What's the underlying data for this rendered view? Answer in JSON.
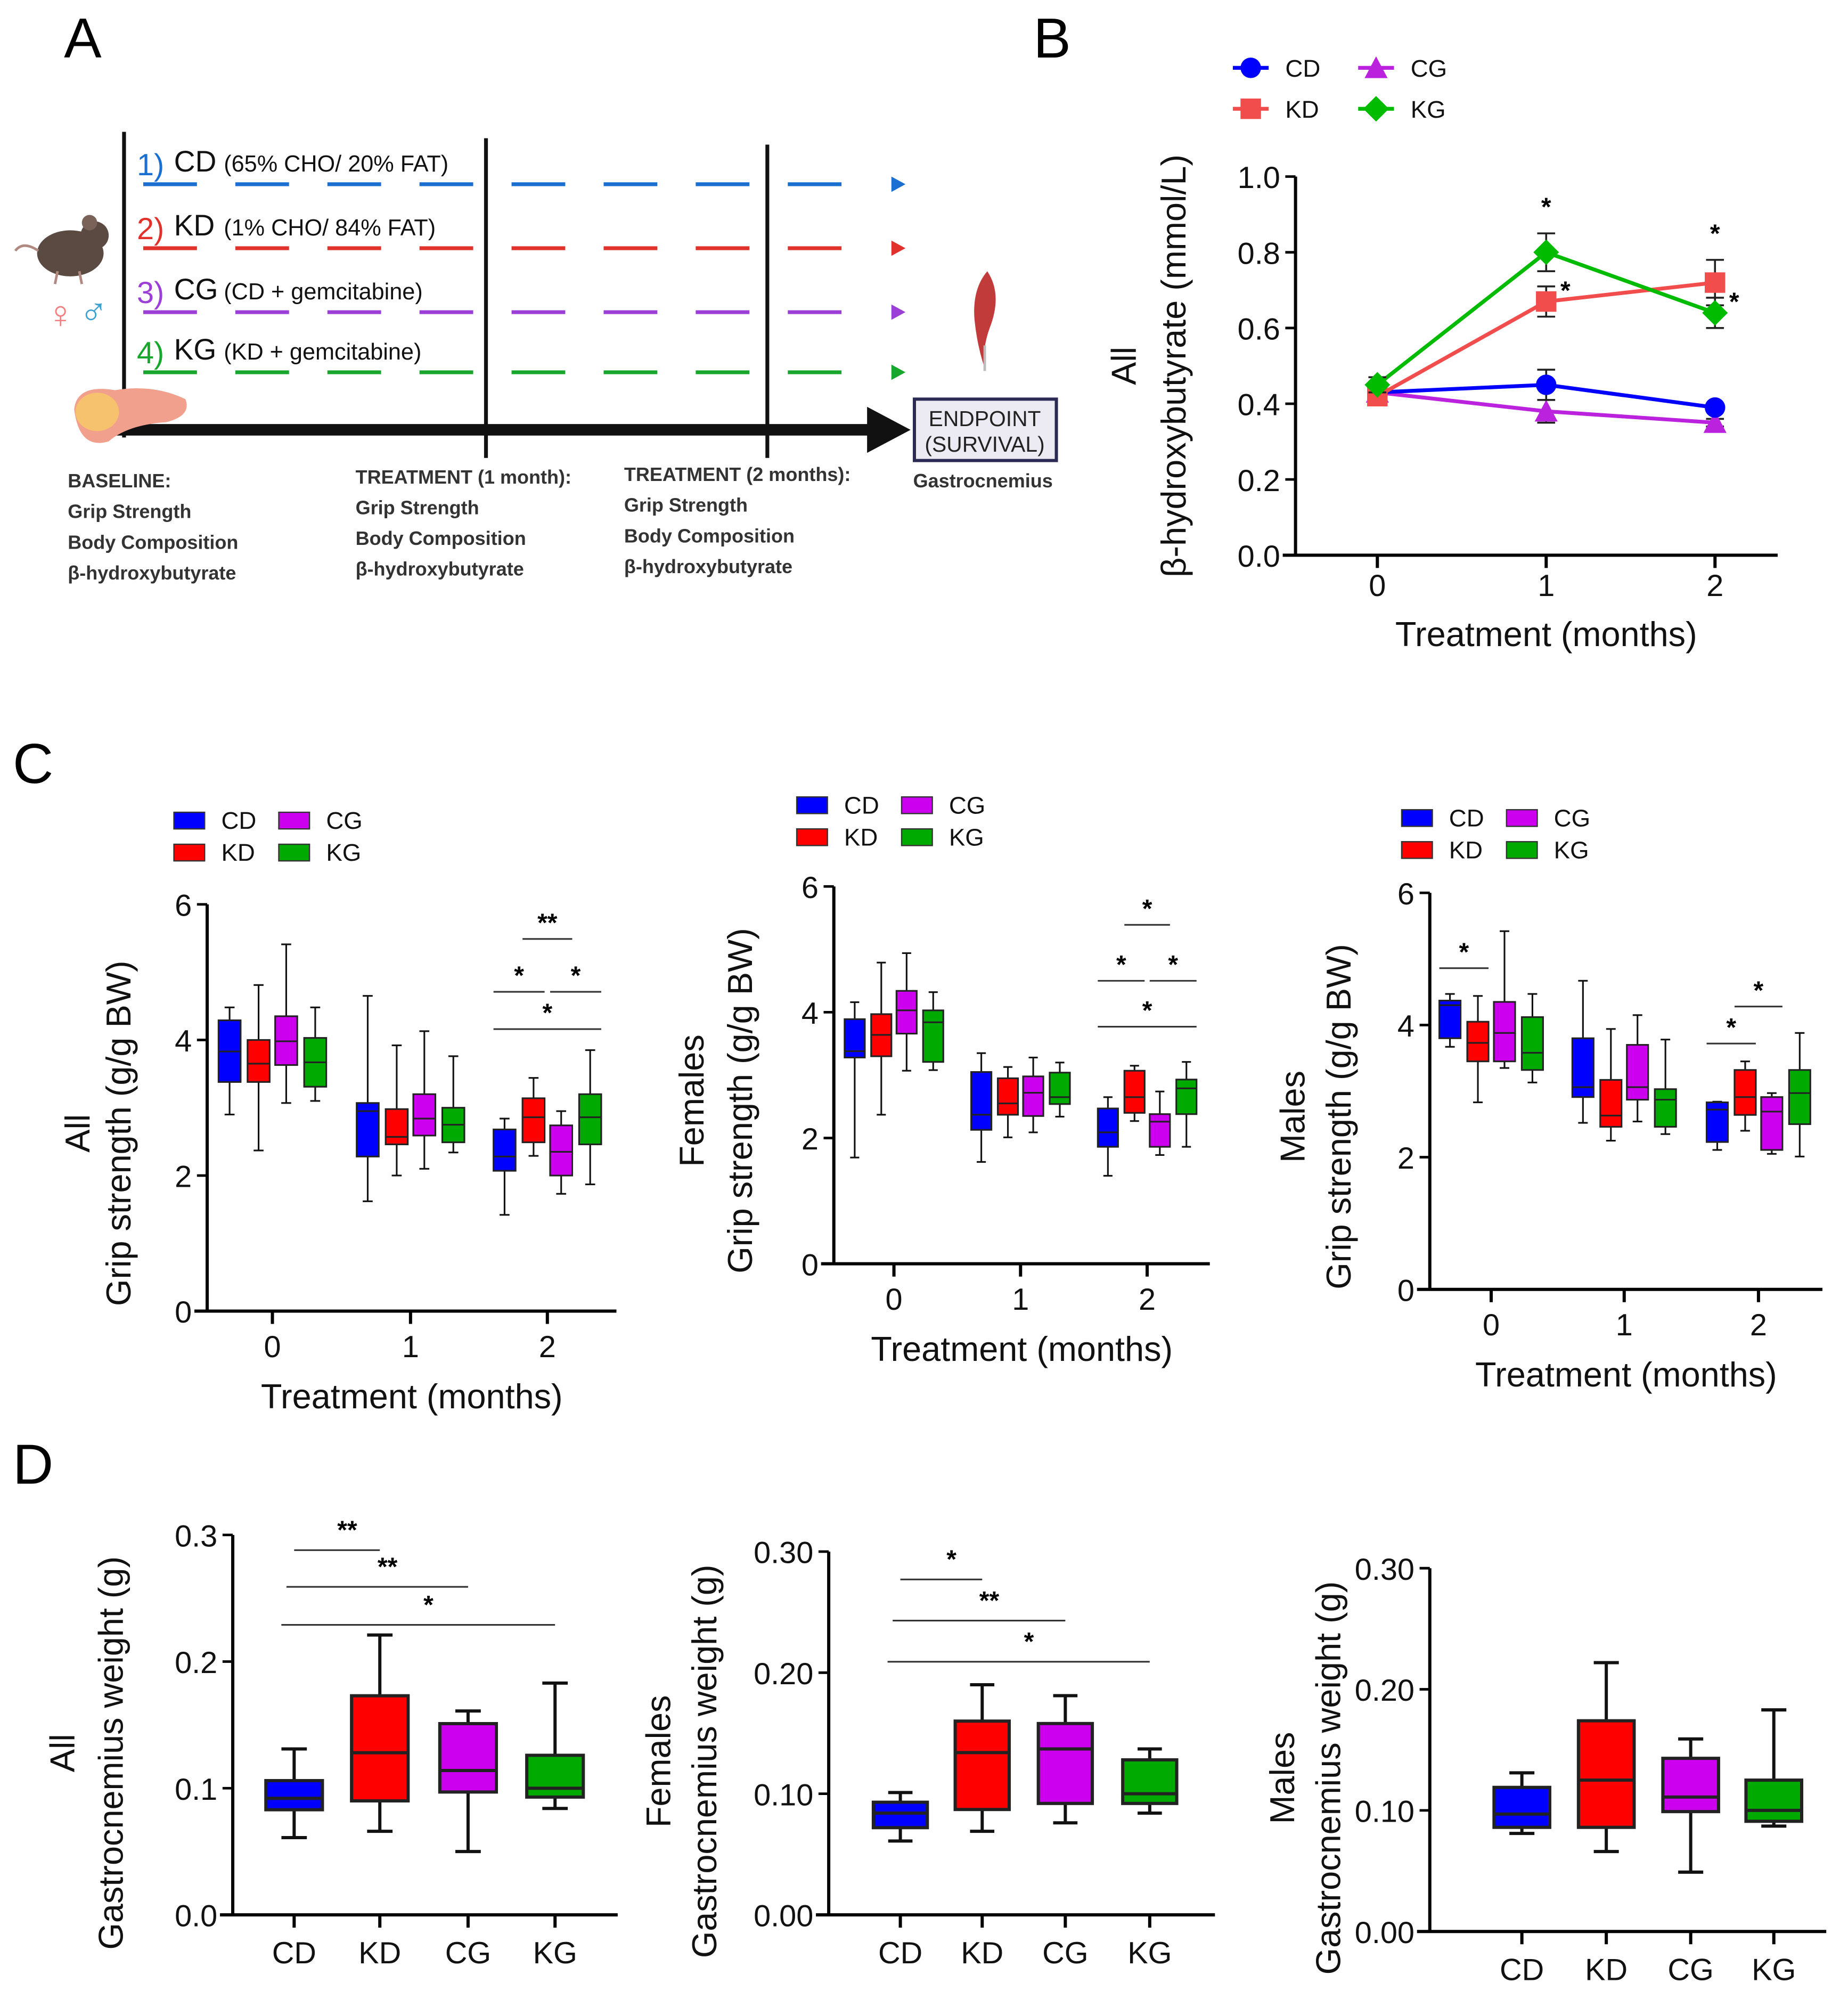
{
  "panel_labels": {
    "a": "A",
    "b": "B",
    "c": "C",
    "d": "D"
  },
  "diagram": {
    "groups": [
      {
        "num": "1)",
        "name": "CD",
        "desc": "(65% CHO/ 20% FAT)",
        "color": "#1a6fd0"
      },
      {
        "num": "2)",
        "name": "KD",
        "desc": "(1% CHO/ 84% FAT)",
        "color": "#e0322b"
      },
      {
        "num": "3)",
        "name": "CG",
        "desc": "(CD + gemcitabine)",
        "color": "#9b3fd6"
      },
      {
        "num": "4)",
        "name": "KG",
        "desc": "(KD + gemcitabine)",
        "color": "#19a62c"
      }
    ],
    "sex_symbols": {
      "female": "♀",
      "male": "♂"
    },
    "timepoints": [
      {
        "title": "BASELINE:",
        "items": [
          "Grip Strength",
          "Body Composition",
          "β-hydroxybutyrate"
        ]
      },
      {
        "title": "TREATMENT (1 month):",
        "items": [
          "Grip Strength",
          "Body Composition",
          "β-hydroxybutyrate"
        ]
      },
      {
        "title": "TREATMENT (2 months):",
        "items": [
          "Grip Strength",
          "Body Composition",
          "β-hydroxybutyrate"
        ]
      }
    ],
    "endpoint": {
      "line1": "ENDPOINT",
      "line2": "(SURVIVAL)",
      "tissue": "Gastrocnemius"
    }
  },
  "chart_data": [
    {
      "type": "line",
      "panel": "B",
      "ylabel_group": "All",
      "ylabel": "β-hydroxybutyrate (mmol/L)",
      "xlabel": "Treatment (months)",
      "x": [
        "0",
        "1",
        "2"
      ],
      "ylim": [
        0,
        1.0
      ],
      "yticks": [
        "0.0",
        "0.2",
        "0.4",
        "0.6",
        "0.8",
        "1.0"
      ],
      "legend": "top",
      "series": [
        {
          "name": "CD",
          "color": "#0000ff",
          "marker": "circle",
          "values": [
            0.43,
            0.45,
            0.39
          ],
          "sem": [
            0.02,
            0.04,
            0.01
          ]
        },
        {
          "name": "KD",
          "color": "#f24d4d",
          "marker": "square",
          "values": [
            0.42,
            0.67,
            0.72
          ],
          "sem": [
            0.02,
            0.04,
            0.06
          ]
        },
        {
          "name": "CG",
          "color": "#bb22dd",
          "marker": "triangle",
          "values": [
            0.43,
            0.38,
            0.35
          ],
          "sem": [
            0.02,
            0.03,
            0.01
          ]
        },
        {
          "name": "KG",
          "color": "#00bb00",
          "marker": "diamond",
          "values": [
            0.45,
            0.8,
            0.64
          ],
          "sem": [
            0.02,
            0.05,
            0.04
          ]
        }
      ],
      "annotations": [
        {
          "series": "KG",
          "x": "1",
          "label": "*",
          "position": "above"
        },
        {
          "series": "KD",
          "x": "1",
          "label": "*",
          "position": "right"
        },
        {
          "series": "KD",
          "x": "2",
          "label": "*",
          "position": "above"
        },
        {
          "series": "KG",
          "x": "2",
          "label": "*",
          "position": "right"
        }
      ]
    },
    {
      "type": "box",
      "panel": "C",
      "ylabel_group": "All",
      "ylabel": "Grip strength (g/g BW)",
      "xlabel": "Treatment (months)",
      "categories": [
        "0",
        "1",
        "2"
      ],
      "ylim": [
        0,
        6
      ],
      "yticks": [
        "0",
        "2",
        "4",
        "6"
      ],
      "legend": "top-left",
      "series": [
        {
          "name": "CD",
          "color": "#0000ff",
          "boxes": [
            [
              2.9,
              3.38,
              3.83,
              4.29,
              4.48
            ],
            [
              1.62,
              2.28,
              2.95,
              3.07,
              4.65
            ],
            [
              1.42,
              2.07,
              2.28,
              2.68,
              2.84
            ]
          ]
        },
        {
          "name": "KD",
          "color": "#ff0000",
          "boxes": [
            [
              2.37,
              3.38,
              3.65,
              4.0,
              4.81
            ],
            [
              2.0,
              2.46,
              2.57,
              2.98,
              3.92
            ],
            [
              2.29,
              2.49,
              2.86,
              3.14,
              3.44
            ]
          ]
        },
        {
          "name": "CG",
          "color": "#cc00ee",
          "boxes": [
            [
              3.07,
              3.63,
              3.98,
              4.35,
              5.41
            ],
            [
              2.1,
              2.59,
              2.84,
              3.2,
              4.13
            ],
            [
              1.73,
              2.0,
              2.35,
              2.74,
              2.95
            ]
          ]
        },
        {
          "name": "KG",
          "color": "#00aa00",
          "boxes": [
            [
              3.1,
              3.31,
              3.67,
              4.03,
              4.48
            ],
            [
              2.34,
              2.49,
              2.75,
              3.0,
              3.76
            ],
            [
              1.87,
              2.46,
              2.86,
              3.2,
              3.85
            ]
          ]
        }
      ],
      "annotations": [
        {
          "category": "2",
          "from": "KD",
          "to": "CG",
          "y": 5.49,
          "label": "**"
        },
        {
          "category": "2",
          "from": "CD",
          "to": "KD",
          "y": 4.71,
          "label": "*"
        },
        {
          "category": "2",
          "from": "CG",
          "to": "KG",
          "y": 4.71,
          "label": "*"
        },
        {
          "category": "2",
          "from": "CD",
          "to": "KG",
          "y": 4.16,
          "label": "*"
        }
      ]
    },
    {
      "type": "box",
      "panel": "C",
      "ylabel_group": "Females",
      "ylabel": "Grip strength (g/g BW)",
      "xlabel": "Treatment (months)",
      "categories": [
        "0",
        "1",
        "2"
      ],
      "ylim": [
        0,
        6
      ],
      "yticks": [
        "0",
        "2",
        "4",
        "6"
      ],
      "legend": "top-left",
      "series": [
        {
          "name": "CD",
          "color": "#0000ff",
          "boxes": [
            [
              1.69,
              3.28,
              3.38,
              3.89,
              4.16
            ],
            [
              1.62,
              2.13,
              2.37,
              3.05,
              3.35
            ],
            [
              1.4,
              1.86,
              2.09,
              2.47,
              2.65
            ]
          ]
        },
        {
          "name": "KD",
          "color": "#ff0000",
          "boxes": [
            [
              2.37,
              3.3,
              3.64,
              3.97,
              4.79
            ],
            [
              2.01,
              2.37,
              2.55,
              2.95,
              3.13
            ],
            [
              2.27,
              2.4,
              2.65,
              3.07,
              3.15
            ]
          ]
        },
        {
          "name": "CG",
          "color": "#cc00ee",
          "boxes": [
            [
              3.07,
              3.66,
              4.03,
              4.34,
              4.94
            ],
            [
              2.09,
              2.35,
              2.72,
              2.98,
              3.28
            ],
            [
              1.73,
              1.86,
              2.26,
              2.38,
              2.74
            ]
          ]
        },
        {
          "name": "KG",
          "color": "#00aa00",
          "boxes": [
            [
              3.08,
              3.21,
              3.84,
              4.03,
              4.32
            ],
            [
              2.34,
              2.54,
              2.65,
              3.04,
              3.2
            ],
            [
              1.86,
              2.38,
              2.79,
              2.93,
              3.21
            ]
          ]
        }
      ],
      "annotations": [
        {
          "category": "2",
          "from": "KD",
          "to": "CG",
          "y": 5.39,
          "label": "*"
        },
        {
          "category": "2",
          "from": "CD",
          "to": "KD",
          "y": 4.5,
          "label": "*"
        },
        {
          "category": "2",
          "from": "CG",
          "to": "KG",
          "y": 4.5,
          "label": "*"
        },
        {
          "category": "2",
          "from": "CD",
          "to": "KG",
          "y": 3.77,
          "label": "*"
        }
      ]
    },
    {
      "type": "box",
      "panel": "C",
      "ylabel_group": "Males",
      "ylabel": "Grip strength (g/g BW)",
      "xlabel": "Treatment (months)",
      "categories": [
        "0",
        "1",
        "2"
      ],
      "ylim": [
        0,
        6
      ],
      "yticks": [
        "0",
        "2",
        "4",
        "6"
      ],
      "legend": "top-left",
      "series": [
        {
          "name": "CD",
          "color": "#0000ff",
          "boxes": [
            [
              3.67,
              3.8,
              4.3,
              4.37,
              4.47
            ],
            [
              2.52,
              2.91,
              3.06,
              3.8,
              4.67
            ],
            [
              2.11,
              2.23,
              2.72,
              2.83,
              2.84
            ]
          ]
        },
        {
          "name": "KD",
          "color": "#ff0000",
          "boxes": [
            [
              2.83,
              3.45,
              3.73,
              4.05,
              4.44
            ],
            [
              2.25,
              2.46,
              2.63,
              3.17,
              3.94
            ],
            [
              2.4,
              2.64,
              2.91,
              3.32,
              3.45
            ]
          ]
        },
        {
          "name": "CG",
          "color": "#cc00ee",
          "boxes": [
            [
              3.35,
              3.45,
              3.88,
              4.35,
              5.42
            ],
            [
              2.54,
              2.87,
              3.06,
              3.7,
              4.15
            ],
            [
              2.05,
              2.11,
              2.69,
              2.91,
              2.97
            ]
          ]
        },
        {
          "name": "KG",
          "color": "#00aa00",
          "boxes": [
            [
              3.13,
              3.32,
              3.58,
              4.12,
              4.47
            ],
            [
              2.35,
              2.46,
              2.87,
              3.03,
              3.78
            ],
            [
              2.01,
              2.5,
              2.97,
              3.32,
              3.88
            ]
          ]
        }
      ],
      "annotations": [
        {
          "category": "0",
          "from": "CD",
          "to": "KD",
          "y": 4.86,
          "label": "*"
        },
        {
          "category": "2",
          "from": "KD",
          "to": "CG",
          "y": 4.28,
          "label": "*"
        },
        {
          "category": "2",
          "from": "CD",
          "to": "KD",
          "y": 3.72,
          "label": "*"
        }
      ]
    },
    {
      "type": "box",
      "panel": "D",
      "ylabel_group": "All",
      "ylabel": "Gastrocnemius weight (g)",
      "categories": [
        "CD",
        "KD",
        "CG",
        "KG"
      ],
      "ylim": [
        0,
        0.3
      ],
      "yticks": [
        "0.0",
        "0.1",
        "0.2",
        "0.3"
      ],
      "boxes": [
        {
          "group": "CD",
          "color": "#0000ff",
          "stats": [
            0.061,
            0.083,
            0.092,
            0.106,
            0.131
          ]
        },
        {
          "group": "KD",
          "color": "#ff0000",
          "stats": [
            0.066,
            0.09,
            0.128,
            0.173,
            0.221
          ]
        },
        {
          "group": "CG",
          "color": "#cc00ee",
          "stats": [
            0.05,
            0.097,
            0.114,
            0.151,
            0.161
          ]
        },
        {
          "group": "KG",
          "color": "#00aa00",
          "stats": [
            0.084,
            0.093,
            0.1,
            0.126,
            0.183
          ]
        }
      ],
      "annotations": [
        {
          "from": "CD",
          "to": "KD",
          "y": 0.288,
          "label": "**"
        },
        {
          "from": "CD",
          "to": "CG",
          "y": 0.259,
          "label": "**"
        },
        {
          "from": "CD",
          "to": "KG",
          "y": 0.229,
          "label": "*"
        }
      ]
    },
    {
      "type": "box",
      "panel": "D",
      "ylabel_group": "Females",
      "ylabel": "Gastrocnemius weight (g)",
      "categories": [
        "CD",
        "KD",
        "CG",
        "KG"
      ],
      "ylim": [
        0,
        0.3
      ],
      "yticks": [
        "0.00",
        "0.10",
        "0.20",
        "0.30"
      ],
      "boxes": [
        {
          "group": "CD",
          "color": "#0000ff",
          "stats": [
            0.061,
            0.072,
            0.084,
            0.093,
            0.101
          ]
        },
        {
          "group": "KD",
          "color": "#ff0000",
          "stats": [
            0.069,
            0.087,
            0.134,
            0.16,
            0.19
          ]
        },
        {
          "group": "CG",
          "color": "#cc00ee",
          "stats": [
            0.076,
            0.092,
            0.137,
            0.158,
            0.181
          ]
        },
        {
          "group": "KG",
          "color": "#00aa00",
          "stats": [
            0.084,
            0.092,
            0.1,
            0.128,
            0.137
          ]
        }
      ],
      "annotations": [
        {
          "from": "CD",
          "to": "KD",
          "y": 0.277,
          "label": "*"
        },
        {
          "from": "CD",
          "to": "CG",
          "y": 0.243,
          "label": "**"
        },
        {
          "from": "CD",
          "to": "KG",
          "y": 0.209,
          "label": "*"
        }
      ]
    },
    {
      "type": "box",
      "panel": "D",
      "ylabel_group": "Males",
      "ylabel": "Gastrocnemius weight (g)",
      "categories": [
        "CD",
        "KD",
        "CG",
        "KG"
      ],
      "ylim": [
        0,
        0.3
      ],
      "yticks": [
        "0.00",
        "0.10",
        "0.20",
        "0.30"
      ],
      "boxes": [
        {
          "group": "CD",
          "color": "#0000ff",
          "stats": [
            0.081,
            0.086,
            0.097,
            0.119,
            0.131
          ]
        },
        {
          "group": "KD",
          "color": "#ff0000",
          "stats": [
            0.066,
            0.086,
            0.125,
            0.174,
            0.222
          ]
        },
        {
          "group": "CG",
          "color": "#cc00ee",
          "stats": [
            0.049,
            0.099,
            0.111,
            0.143,
            0.159
          ]
        },
        {
          "group": "KG",
          "color": "#00aa00",
          "stats": [
            0.087,
            0.091,
            0.1,
            0.125,
            0.183
          ]
        }
      ],
      "annotations": []
    }
  ]
}
